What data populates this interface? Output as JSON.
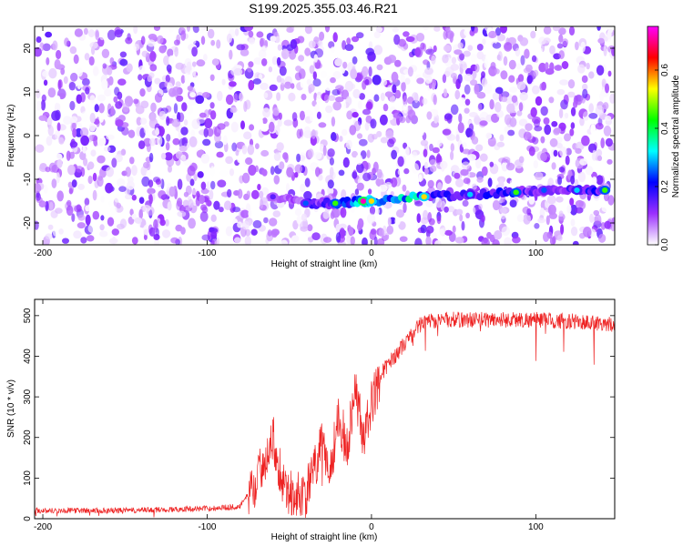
{
  "title": "S199.2025.355.03.46.R21",
  "chart_data": [
    {
      "type": "heatmap",
      "xlabel": "Height of straight line (km)",
      "ylabel": "Frequency (Hz)",
      "xlim": [
        -205,
        148
      ],
      "ylim": [
        -25,
        25
      ],
      "xticks": [
        -200,
        -100,
        0,
        100
      ],
      "yticks": [
        -20,
        -10,
        0,
        10,
        20
      ],
      "colorbar": {
        "label": "Normalized spectral amplitude",
        "ticks": [
          0.0,
          0.2,
          0.4,
          0.6
        ],
        "range": [
          0.0,
          0.75
        ],
        "colors": [
          "#ffffff",
          "#9b30ff",
          "#0000ff",
          "#00ffff",
          "#00ff00",
          "#ffff00",
          "#ff0000",
          "#ff00ff"
        ]
      },
      "ridge": {
        "x": [
          -60,
          -40,
          -22,
          -5,
          0,
          32,
          60,
          88,
          105,
          125,
          142
        ],
        "y": [
          -14,
          -15.5,
          -15.5,
          -15,
          -15,
          -14,
          -13.5,
          -13,
          -12.5,
          -12.5,
          -12.5
        ],
        "amplitude": [
          0.15,
          0.25,
          0.45,
          0.72,
          0.55,
          0.55,
          0.3,
          0.45,
          0.25,
          0.3,
          0.45
        ]
      }
    },
    {
      "type": "line",
      "xlabel": "Height of straight line (km)",
      "ylabel": "SNR (10 * v/v)",
      "xlim": [
        -205,
        148
      ],
      "ylim": [
        0,
        540
      ],
      "xticks": [
        -200,
        -100,
        0,
        100
      ],
      "yticks": [
        0,
        100,
        200,
        300,
        400,
        500
      ],
      "series": [
        {
          "color": "#ee2222",
          "x": [
            -205,
            -150,
            -100,
            -80,
            -70,
            -65,
            -60,
            -55,
            -50,
            -40,
            -30,
            -25,
            -20,
            -15,
            -10,
            -5,
            0,
            5,
            10,
            20,
            30,
            40,
            60,
            100,
            148
          ],
          "y": [
            20,
            20,
            25,
            30,
            90,
            150,
            200,
            110,
            60,
            60,
            180,
            120,
            260,
            170,
            330,
            200,
            280,
            350,
            380,
            430,
            480,
            490,
            490,
            490,
            480
          ]
        }
      ]
    }
  ]
}
